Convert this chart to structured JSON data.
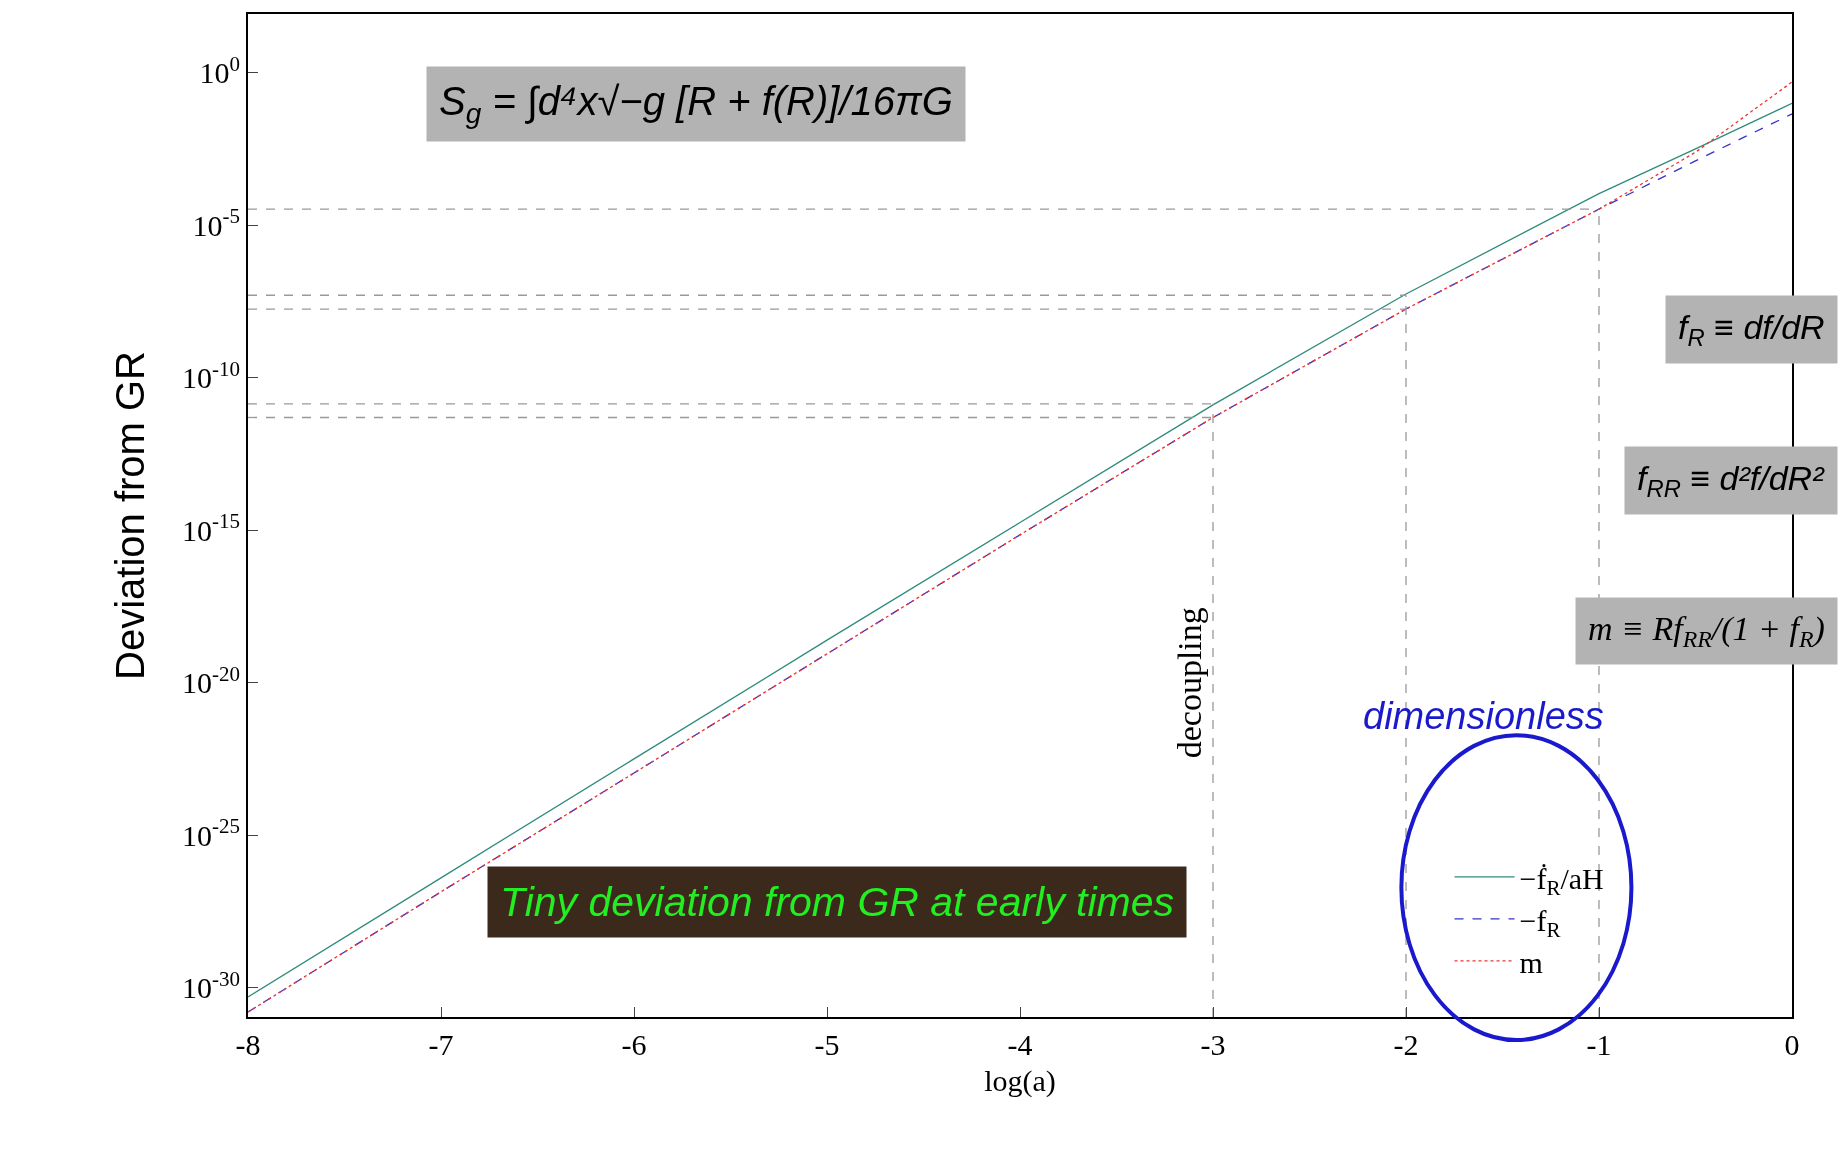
{
  "chart_data": {
    "type": "line",
    "xlabel": "log(a)",
    "ylabel": "Deviation from GR",
    "x": [
      -8,
      -7,
      -6,
      -5,
      -4,
      -3,
      -2,
      -1,
      -0.5,
      0
    ],
    "xlim": [
      -8,
      0
    ],
    "xticks": [
      -8,
      -7,
      -6,
      -5,
      -4,
      -3,
      -2,
      -1,
      0
    ],
    "ylim": [
      1.1e-31,
      85
    ],
    "log": true,
    "yticks": [
      {
        "value": 1e-30,
        "label": "10$^{-30}$"
      },
      {
        "value": 1e-25,
        "label": "10$^{-25}$"
      },
      {
        "value": 1e-20,
        "label": "10$^{-20}$"
      },
      {
        "value": 1e-15,
        "label": "10$^{-15}$"
      },
      {
        "value": 1e-10,
        "label": "10$^{-10}$"
      },
      {
        "value": 1e-05,
        "label": "10$^{-5}$"
      },
      {
        "value": 1,
        "label": "10$^{0}$"
      }
    ],
    "legend": "bottom right",
    "marker": "none",
    "series": [
      {
        "name": "−ḟ$_{R}$/aH",
        "color": "#2e8b7a",
        "line_style": "solid",
        "values": [
          5e-31,
          4e-27,
          3.2e-23,
          2.5e-19,
          1.8e-15,
          1.3e-11,
          5.6e-08,
          0.00011,
          0.0032,
          0.1
        ]
      },
      {
        "name": "−f$_{R}$",
        "color": "#3333cc",
        "line_style": "dashed",
        "values": [
          1.6e-31,
          1.4e-27,
          1.1e-23,
          8.9e-20,
          7.1e-16,
          5e-12,
          1.8e-08,
          3.4e-05,
          0.0013,
          0.045
        ]
      },
      {
        "name": "m",
        "color": "#ee3333",
        "line_style": "dotted",
        "values": [
          1.6e-31,
          1.4e-27,
          1.1e-23,
          8.9e-20,
          7.1e-16,
          5e-12,
          1.8e-08,
          3.4e-05,
          0.0025,
          0.5
        ]
      },
      {
        "color": "#999999",
        "line_style": "dashed",
        "x": [
          -8,
          -1
        ],
        "values": [
          3.4e-05,
          3.4e-05
        ]
      },
      {
        "color": "#999999",
        "line_style": "dashed",
        "x": [
          -8,
          -2
        ],
        "values": [
          5.1e-08,
          5.1e-08
        ]
      },
      {
        "color": "#999999",
        "line_style": "dashed",
        "x": [
          -8,
          -2
        ],
        "values": [
          1.8e-08,
          1.8e-08
        ]
      },
      {
        "color": "#999999",
        "line_style": "dashed",
        "x": [
          -8,
          -3
        ],
        "values": [
          1.4e-11,
          1.4e-11
        ]
      },
      {
        "color": "#999999",
        "line_style": "dashed",
        "x": [
          -8,
          -3
        ],
        "values": [
          5e-12,
          5e-12
        ]
      },
      {
        "color": "#999999",
        "line_style": "dashed",
        "x": [
          -3,
          -3
        ],
        "values": [
          1.1e-31,
          1.4e-11
        ]
      },
      {
        "color": "#999999",
        "line_style": "dashed",
        "x": [
          -2,
          -2
        ],
        "values": [
          1.1e-31,
          5.1e-08
        ]
      },
      {
        "color": "#999999",
        "line_style": "dashed",
        "x": [
          -1,
          -1
        ],
        "values": [
          1.1e-31,
          3.4e-05
        ]
      }
    ],
    "annotations": [
      "S$_{g}$ = ∫d⁴x√−g [R + f(R)]/16πG",
      "f$_{R}$ ≡ df/dR",
      "f$_{RR}$ ≡ d²f/dR²",
      "m ≡ Rf$_{RR}$/(1 + f$_{R}$)",
      "Tiny deviation from GR at early times",
      "dimensionless",
      {
        "text": "decoupling",
        "x": -3,
        "y": 1e-20
      }
    ]
  }
}
